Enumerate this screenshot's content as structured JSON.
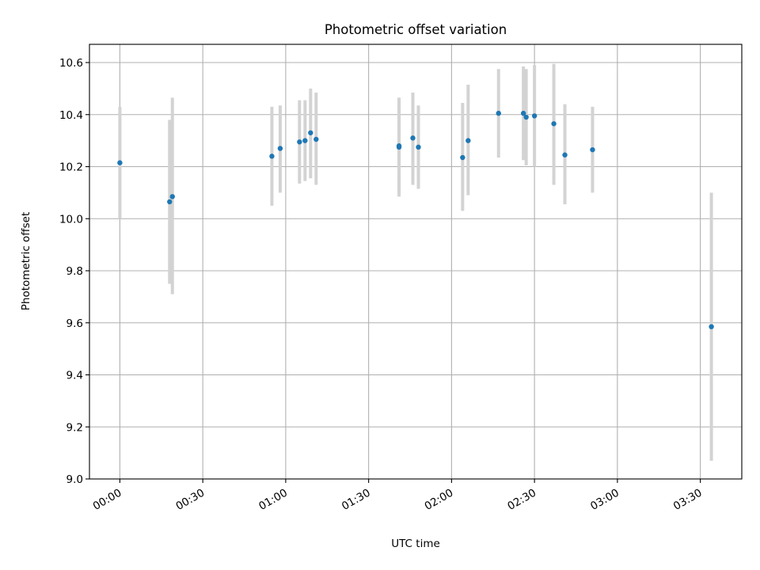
{
  "chart_data": {
    "type": "scatter",
    "title": "Photometric offset variation",
    "xlabel": "UTC time",
    "ylabel": "Photometric offset",
    "xlim": [
      "23:49",
      "03:45"
    ],
    "ylim": [
      9.0,
      10.67
    ],
    "xticks": [
      "00:00",
      "00:30",
      "01:00",
      "01:30",
      "02:00",
      "02:30",
      "03:00",
      "03:30"
    ],
    "yticks": [
      "9.0",
      "9.2",
      "9.4",
      "9.6",
      "9.8",
      "10.0",
      "10.2",
      "10.4",
      "10.6"
    ],
    "grid": true,
    "colors": {
      "points": "#1f77b4",
      "error_bars": "#d3d3d3"
    },
    "points": [
      {
        "x": "00:00",
        "y": 10.215,
        "ylow": 10.0,
        "yhigh": 10.43
      },
      {
        "x": "00:18",
        "y": 10.065,
        "ylow": 9.75,
        "yhigh": 10.38
      },
      {
        "x": "00:19",
        "y": 10.085,
        "ylow": 9.71,
        "yhigh": 10.465
      },
      {
        "x": "00:55",
        "y": 10.24,
        "ylow": 10.05,
        "yhigh": 10.43
      },
      {
        "x": "00:58",
        "y": 10.27,
        "ylow": 10.1,
        "yhigh": 10.435
      },
      {
        "x": "01:05",
        "y": 10.295,
        "ylow": 10.135,
        "yhigh": 10.455
      },
      {
        "x": "01:07",
        "y": 10.3,
        "ylow": 10.145,
        "yhigh": 10.455
      },
      {
        "x": "01:09",
        "y": 10.33,
        "ylow": 10.155,
        "yhigh": 10.5
      },
      {
        "x": "01:11",
        "y": 10.305,
        "ylow": 10.13,
        "yhigh": 10.485
      },
      {
        "x": "01:41",
        "y": 10.275,
        "ylow": 10.085,
        "yhigh": 10.465
      },
      {
        "x": "01:41",
        "y": 10.28,
        "ylow": 10.095,
        "yhigh": 10.465
      },
      {
        "x": "01:46",
        "y": 10.31,
        "ylow": 10.13,
        "yhigh": 10.485
      },
      {
        "x": "01:48",
        "y": 10.275,
        "ylow": 10.115,
        "yhigh": 10.435
      },
      {
        "x": "02:04",
        "y": 10.235,
        "ylow": 10.03,
        "yhigh": 10.445
      },
      {
        "x": "02:06",
        "y": 10.3,
        "ylow": 10.09,
        "yhigh": 10.515
      },
      {
        "x": "02:17",
        "y": 10.405,
        "ylow": 10.235,
        "yhigh": 10.575
      },
      {
        "x": "02:26",
        "y": 10.405,
        "ylow": 10.225,
        "yhigh": 10.585
      },
      {
        "x": "02:27",
        "y": 10.39,
        "ylow": 10.205,
        "yhigh": 10.575
      },
      {
        "x": "02:30",
        "y": 10.395,
        "ylow": 10.2,
        "yhigh": 10.59
      },
      {
        "x": "02:37",
        "y": 10.365,
        "ylow": 10.13,
        "yhigh": 10.595
      },
      {
        "x": "02:41",
        "y": 10.245,
        "ylow": 10.055,
        "yhigh": 10.44
      },
      {
        "x": "02:51",
        "y": 10.265,
        "ylow": 10.1,
        "yhigh": 10.43
      },
      {
        "x": "03:34",
        "y": 9.585,
        "ylow": 9.07,
        "yhigh": 10.1
      }
    ]
  }
}
